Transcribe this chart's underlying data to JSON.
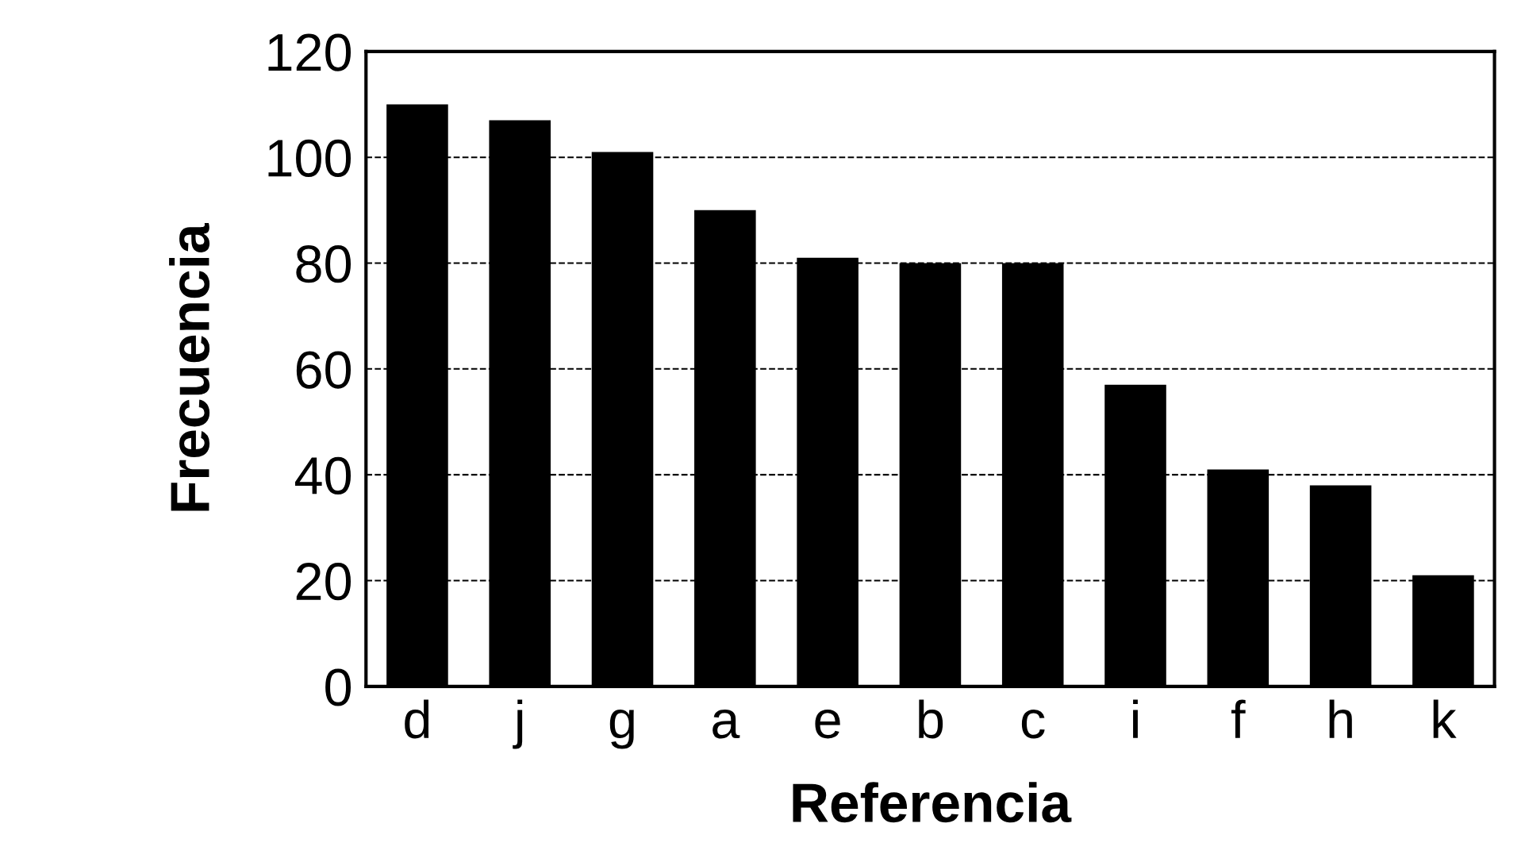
{
  "chart_data": {
    "type": "bar",
    "xlabel": "Referencia",
    "ylabel": "Frecuencia",
    "categories": [
      "d",
      "j",
      "g",
      "a",
      "e",
      "b",
      "c",
      "i",
      "f",
      "h",
      "k"
    ],
    "values": [
      110,
      107,
      101,
      90,
      81,
      80,
      80,
      57,
      41,
      38,
      21
    ],
    "color": "#000000",
    "ylim": [
      0,
      120
    ],
    "yticks": [
      0,
      20,
      40,
      60,
      80,
      100,
      120
    ],
    "grid": "y",
    "line_style": "dashed"
  }
}
